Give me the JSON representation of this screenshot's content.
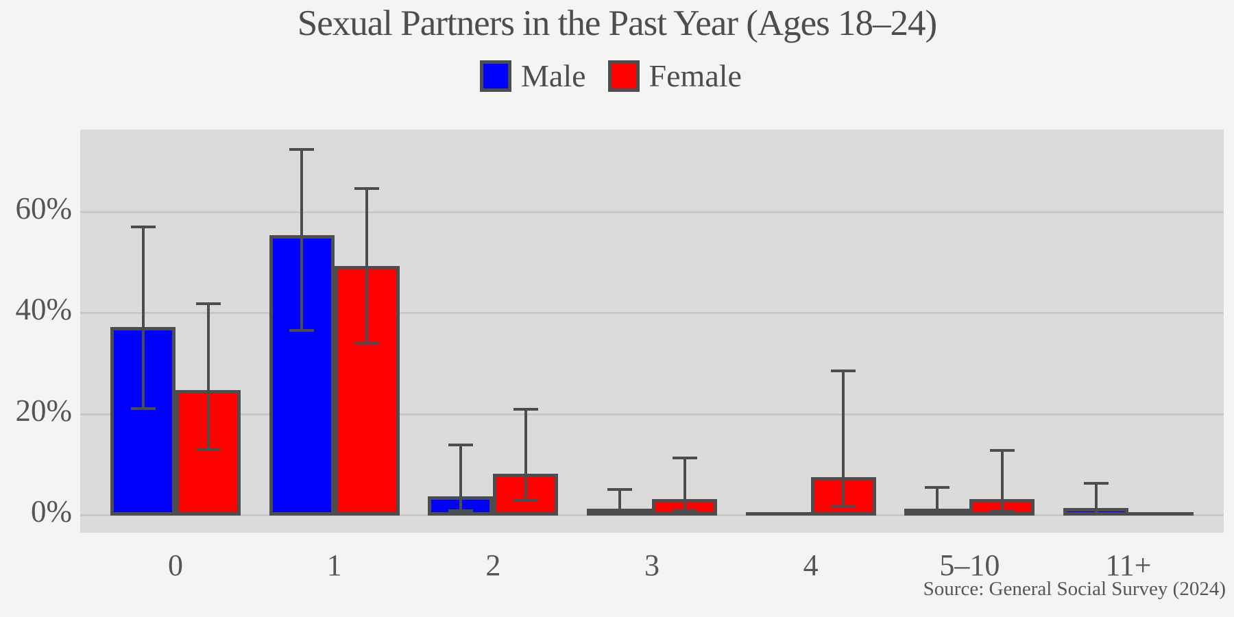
{
  "chart_data": {
    "type": "bar",
    "title": "Sexual Partners in the Past Year (Ages 18–24)",
    "source": "Source: General Social Survey (2024)",
    "categories": [
      "0",
      "1",
      "2",
      "3",
      "4",
      "5–10",
      "11+"
    ],
    "series": [
      {
        "name": "Male",
        "color": "#0000ff",
        "values": [
          37.4,
          55.5,
          3.8,
          1.4,
          0,
          1.0,
          1.5
        ],
        "err_lo": [
          21.2,
          36.7,
          1.0,
          0.6,
          null,
          0.4,
          0.4
        ],
        "err_hi": [
          57.2,
          72.5,
          14.0,
          5.2,
          null,
          5.6,
          6.4
        ]
      },
      {
        "name": "Female",
        "color": "#ff0000",
        "values": [
          24.8,
          49.4,
          8.3,
          3.2,
          7.6,
          3.2,
          0
        ],
        "err_lo": [
          13.1,
          34.1,
          3.0,
          1.0,
          1.8,
          0.8,
          null
        ],
        "err_hi": [
          42.0,
          64.8,
          21.0,
          11.4,
          28.6,
          12.9,
          null
        ]
      }
    ],
    "yticks": [
      {
        "label": "0%",
        "value": 0
      },
      {
        "label": "20%",
        "value": 20
      },
      {
        "label": "40%",
        "value": 40
      },
      {
        "label": "60%",
        "value": 60
      }
    ],
    "ylim": [
      0,
      76.4
    ],
    "xlabel": "",
    "ylabel": "",
    "grid": true,
    "legend_position": "top-center",
    "error_bars": true,
    "colors": {
      "page_bg": "#f4f4f2",
      "plot_bg": "#dbdbdb",
      "grid": "#c8c8c8",
      "edge": "#4d4d4d",
      "text": "#4f4f4f"
    }
  }
}
